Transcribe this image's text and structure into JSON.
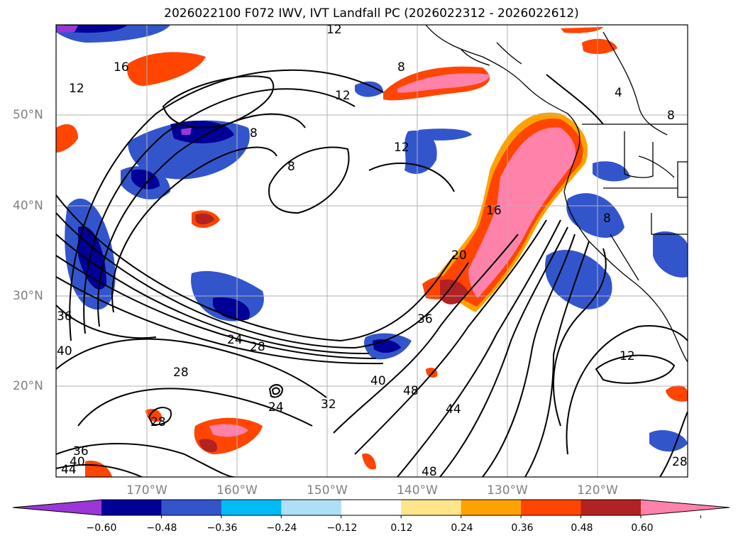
{
  "title": "2026022100 F072 IWV, IVT Landfall PC (2026022312 - 2026022612)",
  "axes": {
    "lat_labels": [
      "50°N",
      "40°N",
      "30°N",
      "20°N"
    ],
    "lon_labels": [
      "170°W",
      "160°W",
      "150°W",
      "140°W",
      "130°W",
      "120°W"
    ]
  },
  "contour_labels": [
    "12",
    "16",
    "12",
    "8",
    "12",
    "8",
    "12",
    "8",
    "4",
    "8",
    "16",
    "20",
    "36",
    "40",
    "36",
    "24",
    "28",
    "28",
    "24",
    "32",
    "40",
    "48",
    "44",
    "12",
    "36",
    "40",
    "44",
    "28",
    "48",
    "8",
    "28"
  ],
  "colorbar": {
    "ticks": [
      "−0.60",
      "−0.48",
      "−0.36",
      "−0.24",
      "−0.12",
      "0.12",
      "0.24",
      "0.36",
      "0.48",
      "0.60"
    ],
    "colors": [
      "#9a37d6",
      "#000096",
      "#3355cc",
      "#00bbf5",
      "#aee0f5",
      "#ffffff",
      "#fde68a",
      "#ffa200",
      "#ff4500",
      "#b22222",
      "#ff82ab"
    ]
  }
}
